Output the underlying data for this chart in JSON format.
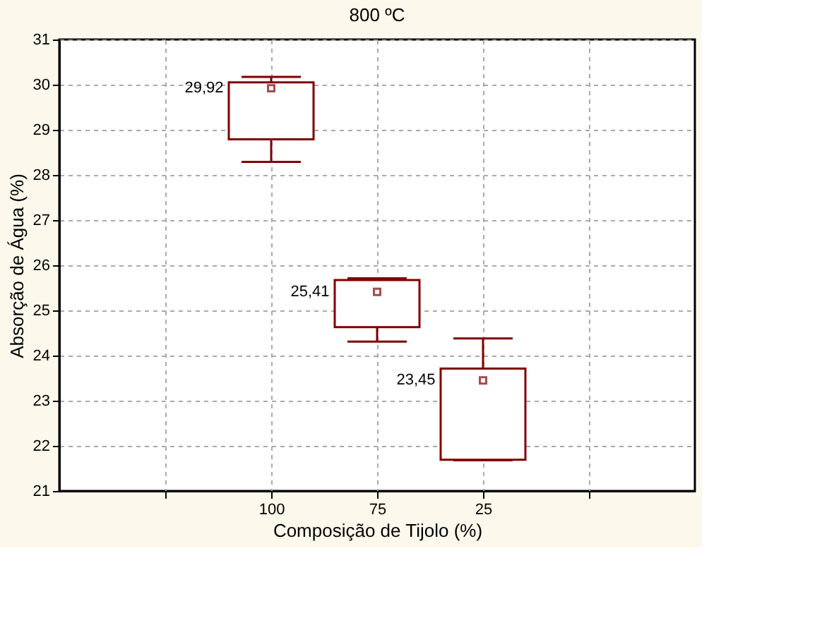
{
  "chart_data": {
    "type": "box",
    "title": "800 ºC",
    "xlabel": "Composição de Tijolo (%)",
    "ylabel": "Absorção de Água (%)",
    "categories": [
      null,
      "100",
      "75",
      "25",
      null
    ],
    "boxes": [
      null,
      {
        "low": 28.29,
        "q1": 28.79,
        "median": 29.92,
        "q3": 30.05,
        "high": 30.17
      },
      {
        "low": 24.31,
        "q1": 24.63,
        "median": 25.41,
        "q3": 25.67,
        "high": 25.71
      },
      {
        "low": 21.68,
        "q1": 21.69,
        "median": 23.45,
        "q3": 23.71,
        "high": 24.38
      },
      null
    ],
    "value_labels": [
      null,
      "29,92",
      "25,41",
      "23,45",
      null
    ],
    "color": "#800000",
    "ylim": [
      21,
      31
    ],
    "yticks": [
      21,
      22,
      23,
      24,
      25,
      26,
      27,
      28,
      29,
      30,
      31
    ],
    "grid": true,
    "marker": "square"
  }
}
